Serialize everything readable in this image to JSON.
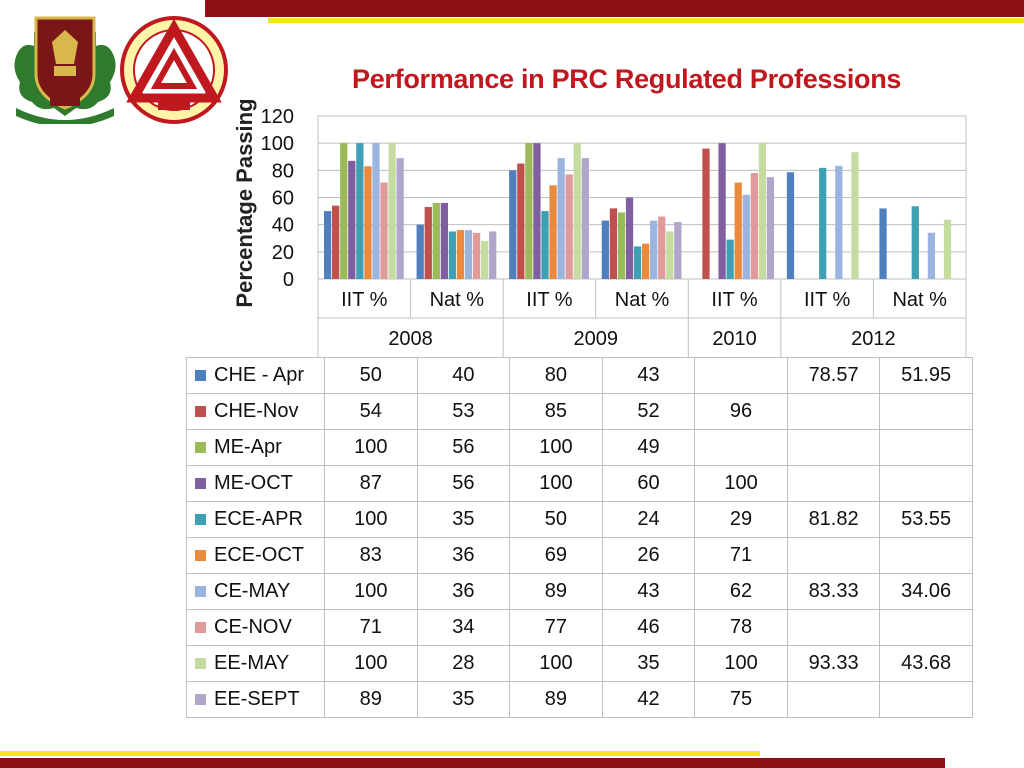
{
  "slide": {
    "title": "Performance in  PRC Regulated Professions",
    "colors": {
      "top_band": "#8b1014",
      "accent_yellow": "#f4e61c",
      "title": "#c0181f"
    }
  },
  "chart_data": {
    "type": "bar",
    "title": "Performance in  PRC Regulated Professions",
    "ylabel": "Percentage Passing",
    "ylim": [
      0,
      120
    ],
    "yticks": [
      "0",
      "20",
      "40",
      "60",
      "80",
      "100",
      "120"
    ],
    "grid": true,
    "categories": [
      "IIT %",
      "Nat %",
      "IIT %",
      "Nat %",
      "IIT %",
      "IIT %",
      "Nat %"
    ],
    "groups": [
      {
        "label": "2008",
        "span": 2
      },
      {
        "label": "2009",
        "span": 2
      },
      {
        "label": "2010",
        "span": 1
      },
      {
        "label": "2012",
        "span": 2
      }
    ],
    "series": [
      {
        "name": "CHE - Apr",
        "color": "#4f7fbf",
        "values": [
          50,
          40,
          80,
          43,
          null,
          78.57,
          51.95
        ]
      },
      {
        "name": "CHE-Nov",
        "color": "#c0504d",
        "values": [
          54,
          53,
          85,
          52,
          96,
          null,
          null
        ]
      },
      {
        "name": "ME-Apr",
        "color": "#9bbb59",
        "values": [
          100,
          56,
          100,
          49,
          null,
          null,
          null
        ]
      },
      {
        "name": "ME-OCT",
        "color": "#7f5fa0",
        "values": [
          87,
          56,
          100,
          60,
          100,
          null,
          null
        ]
      },
      {
        "name": "ECE-APR",
        "color": "#3fa0b4",
        "values": [
          100,
          35,
          50,
          24,
          29,
          81.82,
          53.55
        ]
      },
      {
        "name": "ECE-OCT",
        "color": "#ea8a3a",
        "values": [
          83,
          36,
          69,
          26,
          71,
          null,
          null
        ]
      },
      {
        "name": "CE-MAY",
        "color": "#9bb4e0",
        "values": [
          100,
          36,
          89,
          43,
          62,
          83.33,
          34.06
        ]
      },
      {
        "name": "CE-NOV",
        "color": "#e09a9a",
        "values": [
          71,
          34,
          77,
          46,
          78,
          null,
          null
        ]
      },
      {
        "name": "EE-MAY",
        "color": "#c4dca0",
        "values": [
          100,
          28,
          100,
          35,
          100,
          93.33,
          43.68
        ]
      },
      {
        "name": "EE-SEPT",
        "color": "#b0a6cc",
        "values": [
          89,
          35,
          89,
          42,
          75,
          null,
          null
        ]
      }
    ],
    "value_labels": [
      [
        "50",
        "40",
        "80",
        "43",
        "",
        "78.57",
        "51.95"
      ],
      [
        "54",
        "53",
        "85",
        "52",
        "96",
        "",
        ""
      ],
      [
        "100",
        "56",
        "100",
        "49",
        "",
        "",
        ""
      ],
      [
        "87",
        "56",
        "100",
        "60",
        "100",
        "",
        ""
      ],
      [
        "100",
        "35",
        "50",
        "24",
        "29",
        "81.82",
        "53.55"
      ],
      [
        "83",
        "36",
        "69",
        "26",
        "71",
        "",
        ""
      ],
      [
        "100",
        "36",
        "89",
        "43",
        "62",
        "83.33",
        "34.06"
      ],
      [
        "71",
        "34",
        "77",
        "46",
        "78",
        "",
        ""
      ],
      [
        "100",
        "28",
        "100",
        "35",
        "100",
        "93.33",
        "43.68"
      ],
      [
        "89",
        "35",
        "89",
        "42",
        "75",
        "",
        ""
      ]
    ]
  }
}
